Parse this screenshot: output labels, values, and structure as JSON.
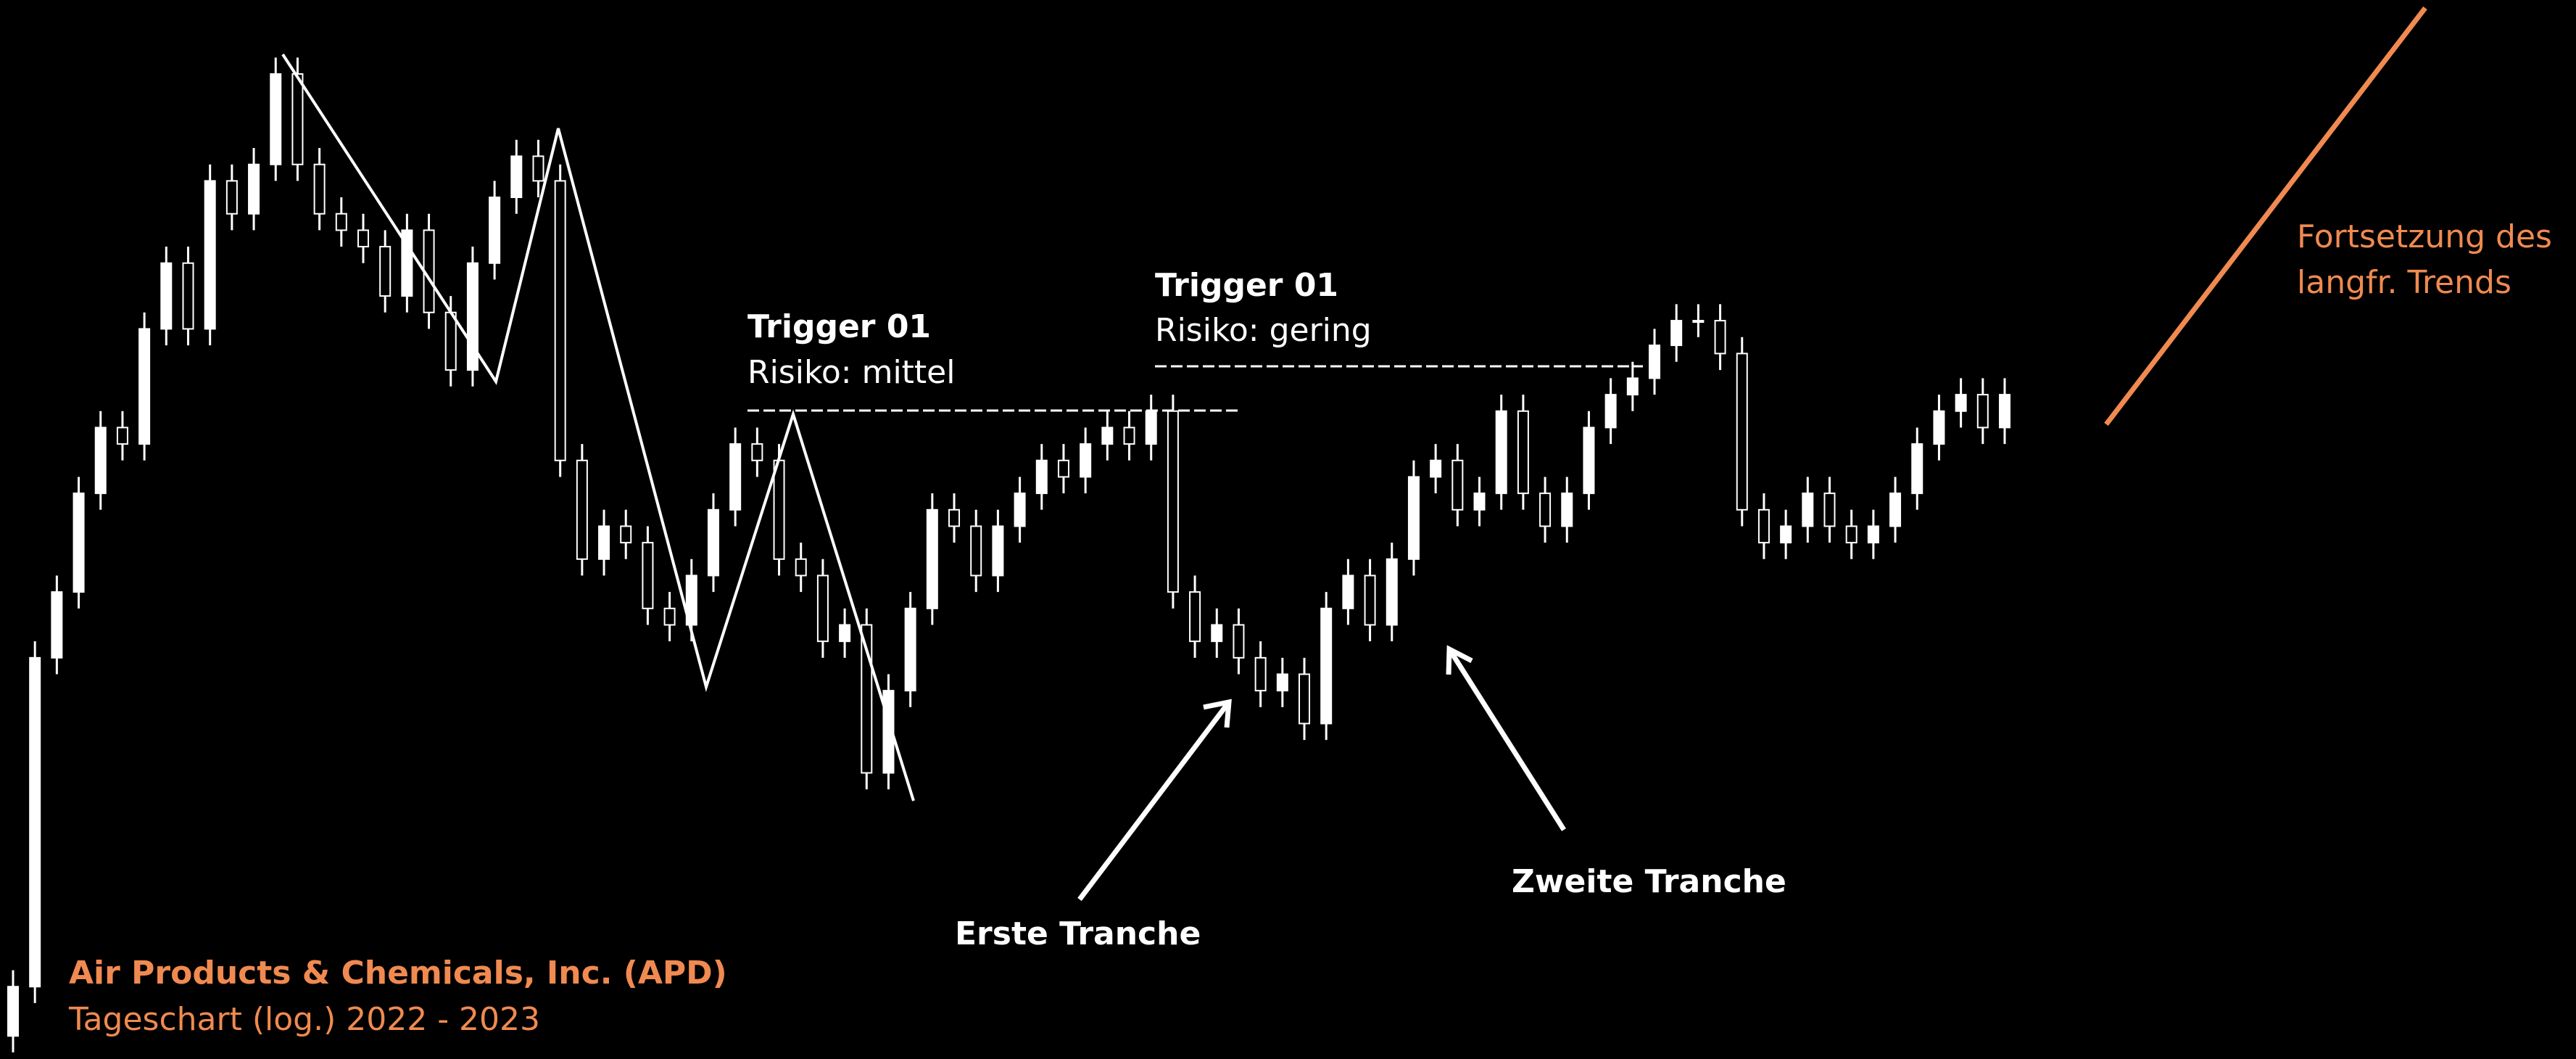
{
  "chart_data": {
    "type": "candlestick",
    "title": "Air Products & Chemicals, Inc. (APD)",
    "subtitle": "Tageschart (log.) 2022 - 2023",
    "log_scale": true,
    "ylim": [
      0,
      644
    ],
    "open": [
      14,
      44,
      244,
      284,
      344,
      384,
      374,
      444,
      484,
      444,
      534,
      514,
      544,
      599,
      544,
      514,
      504,
      494,
      464,
      504,
      454,
      419,
      484,
      524,
      549,
      534,
      364,
      304,
      324,
      314,
      274,
      264,
      294,
      334,
      374,
      364,
      304,
      294,
      254,
      264,
      174,
      224,
      274,
      334,
      324,
      294,
      324,
      344,
      364,
      354,
      374,
      384,
      374,
      394,
      284,
      254,
      264,
      244,
      224,
      234,
      204,
      274,
      294,
      264,
      304,
      354,
      364,
      334,
      344,
      394,
      344,
      324,
      344,
      384,
      404,
      414,
      434,
      449,
      449,
      429,
      334,
      314,
      324,
      344,
      324,
      314,
      324,
      344,
      374,
      394,
      404,
      384
    ],
    "high": [
      54,
      254,
      294,
      354,
      394,
      394,
      454,
      494,
      494,
      544,
      544,
      554,
      609,
      609,
      554,
      524,
      514,
      504,
      514,
      514,
      464,
      494,
      534,
      559,
      559,
      544,
      374,
      334,
      334,
      324,
      284,
      304,
      344,
      384,
      384,
      374,
      314,
      304,
      274,
      274,
      234,
      284,
      344,
      344,
      334,
      334,
      354,
      374,
      374,
      384,
      394,
      394,
      404,
      404,
      294,
      274,
      274,
      254,
      244,
      244,
      284,
      304,
      304,
      314,
      364,
      374,
      374,
      354,
      404,
      404,
      354,
      354,
      394,
      414,
      424,
      444,
      459,
      459,
      459,
      439,
      344,
      334,
      354,
      354,
      334,
      334,
      354,
      384,
      404,
      414,
      414,
      414
    ],
    "low": [
      4,
      34,
      234,
      274,
      334,
      364,
      364,
      434,
      434,
      434,
      504,
      504,
      534,
      534,
      504,
      494,
      484,
      454,
      454,
      444,
      409,
      409,
      474,
      514,
      524,
      354,
      294,
      294,
      304,
      264,
      254,
      254,
      284,
      324,
      354,
      294,
      284,
      244,
      244,
      164,
      164,
      214,
      264,
      314,
      284,
      284,
      314,
      334,
      344,
      344,
      364,
      364,
      364,
      274,
      244,
      244,
      234,
      214,
      214,
      194,
      194,
      264,
      254,
      254,
      294,
      344,
      324,
      324,
      334,
      334,
      314,
      314,
      334,
      374,
      394,
      404,
      424,
      439,
      419,
      324,
      304,
      304,
      314,
      314,
      304,
      304,
      314,
      334,
      364,
      384,
      374,
      374
    ],
    "close": [
      44,
      244,
      284,
      344,
      384,
      374,
      444,
      484,
      444,
      534,
      514,
      544,
      599,
      544,
      514,
      504,
      494,
      464,
      504,
      454,
      419,
      484,
      524,
      549,
      534,
      364,
      304,
      324,
      314,
      274,
      264,
      294,
      334,
      374,
      364,
      304,
      294,
      254,
      264,
      174,
      224,
      274,
      334,
      324,
      294,
      324,
      344,
      364,
      354,
      374,
      384,
      374,
      394,
      284,
      254,
      264,
      244,
      224,
      234,
      204,
      274,
      294,
      264,
      304,
      354,
      364,
      334,
      344,
      394,
      344,
      324,
      344,
      384,
      404,
      414,
      434,
      449,
      449,
      429,
      334,
      314,
      324,
      344,
      324,
      314,
      324,
      344,
      374,
      394,
      404,
      384,
      404
    ],
    "up_color": "#ffffff",
    "down_color": "#000000",
    "annotations": [
      "Trigger 01",
      "Risiko: mittel",
      "Trigger 01",
      "Risiko: gering",
      "Erste Tranche",
      "Zweite Tranche",
      "Fortsetzung des",
      "langfr. Trends"
    ]
  }
}
